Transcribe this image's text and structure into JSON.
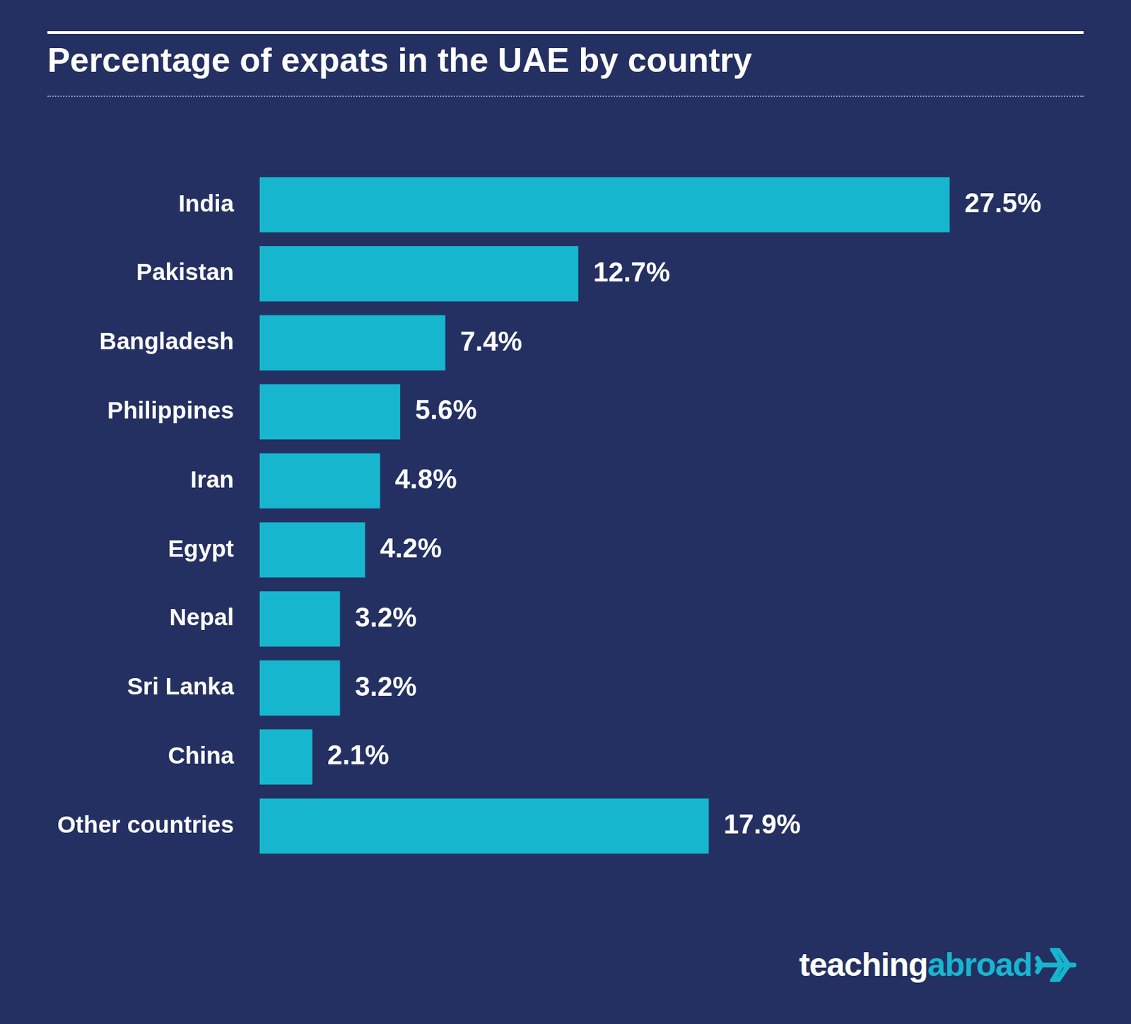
{
  "chart_data": {
    "type": "bar",
    "title": "Percentage of expats in the UAE by country",
    "orientation": "horizontal",
    "categories": [
      "India",
      "Pakistan",
      "Bangladesh",
      "Philippines",
      "Iran",
      "Egypt",
      "Nepal",
      "Sri Lanka",
      "China",
      "Other countries"
    ],
    "values": [
      27.5,
      12.7,
      7.4,
      5.6,
      4.8,
      4.2,
      3.2,
      3.2,
      2.1,
      17.9
    ],
    "value_labels": [
      "27.5%",
      "12.7%",
      "7.4%",
      "5.6%",
      "4.8%",
      "4.2%",
      "3.2%",
      "3.2%",
      "2.1%",
      "17.9%"
    ],
    "color": "#17b6cf",
    "xlim": [
      0,
      30
    ],
    "grid": false,
    "data_labels": true,
    "tick_labels": "y",
    "annotations": [
      "teaching",
      "abroad"
    ]
  }
}
